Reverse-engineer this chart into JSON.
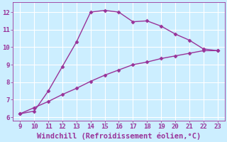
{
  "x": [
    9,
    10,
    11,
    12,
    13,
    14,
    15,
    16,
    17,
    18,
    19,
    20,
    21,
    22,
    23
  ],
  "y_upper": [
    6.2,
    6.35,
    7.5,
    8.9,
    10.3,
    12.0,
    12.1,
    12.0,
    11.45,
    11.5,
    11.2,
    10.75,
    10.4,
    9.9,
    9.8
  ],
  "y_lower": [
    6.2,
    6.55,
    6.9,
    7.3,
    7.65,
    8.05,
    8.4,
    8.7,
    9.0,
    9.15,
    9.35,
    9.5,
    9.65,
    9.8,
    9.8
  ],
  "line_color": "#993399",
  "marker": "D",
  "markersize": 2.5,
  "linewidth": 1.0,
  "bg_color": "#cceeff",
  "grid_color": "#ffffff",
  "xlabel": "Windchill (Refroidissement éolien,°C)",
  "xlabel_color": "#993399",
  "tick_color": "#993399",
  "xlim": [
    8.5,
    23.5
  ],
  "ylim": [
    5.8,
    12.55
  ],
  "xticks": [
    9,
    10,
    11,
    12,
    13,
    14,
    15,
    16,
    17,
    18,
    19,
    20,
    21,
    22,
    23
  ],
  "yticks": [
    6,
    7,
    8,
    9,
    10,
    11,
    12
  ],
  "tick_fontsize": 6.5,
  "xlabel_fontsize": 7.5
}
